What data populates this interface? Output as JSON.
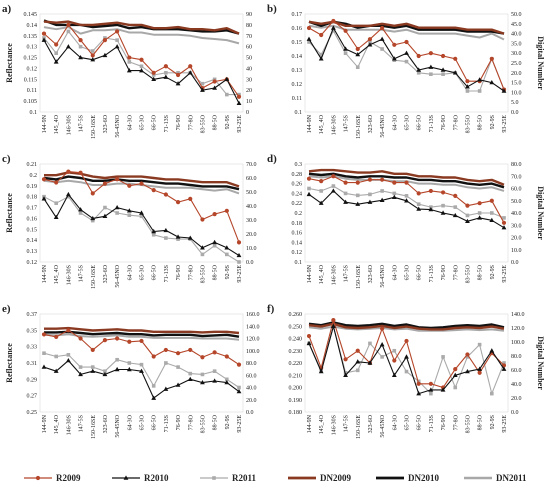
{
  "categories": [
    "144-9N",
    "145_4O",
    "146-30S",
    "147-5S",
    "150-16SE",
    "323-6O",
    "56-45NO",
    "64-3O",
    "65-3O",
    "66-5O",
    "71-13S",
    "76-9O",
    "77-8O",
    "83-55O",
    "88-5O",
    "92-9S",
    "93-25E"
  ],
  "series_styles": [
    {
      "name": "R2009",
      "color": "#b5462a",
      "marker": "circle",
      "width": 1.1,
      "axis": "left"
    },
    {
      "name": "R2010",
      "color": "#111111",
      "marker": "triangle",
      "width": 1.1,
      "axis": "left"
    },
    {
      "name": "R2011",
      "color": "#aaaaaa",
      "marker": "square",
      "width": 1.1,
      "axis": "left"
    },
    {
      "name": "DN2009",
      "color": "#8b3a22",
      "marker": "none",
      "width": 2.4,
      "axis": "right"
    },
    {
      "name": "DN2010",
      "color": "#111111",
      "marker": "none",
      "width": 2.4,
      "axis": "right"
    },
    {
      "name": "DN2011",
      "color": "#a8a8a8",
      "marker": "none",
      "width": 2.0,
      "axis": "right"
    }
  ],
  "legend": {
    "placement": "bottom",
    "entries": [
      "R2009",
      "R2010",
      "R2011",
      "DN2009",
      "DN2010",
      "DN2011"
    ]
  },
  "chart_data": [
    {
      "type": "line",
      "label": "a)",
      "ylabel": "Reflectance",
      "y2label": "",
      "ylim": [
        0.1,
        0.145
      ],
      "yticks": [
        "0.1",
        "0.105",
        "0.11",
        "0.115",
        "0.12",
        "0.125",
        "0.13",
        "0.135",
        "0.14",
        "0.145"
      ],
      "y2lim": [
        0,
        90
      ],
      "y2ticks": [
        "0",
        "10",
        "20",
        "30",
        "40",
        "50",
        "60",
        "70",
        "80",
        "90"
      ],
      "series": [
        {
          "name": "R2009",
          "values": [
            0.136,
            0.131,
            0.14,
            0.133,
            0.126,
            0.133,
            0.137,
            0.125,
            0.124,
            0.118,
            0.121,
            0.117,
            0.121,
            0.111,
            0.114,
            0.115,
            0.107
          ]
        },
        {
          "name": "R2010",
          "values": [
            0.133,
            0.123,
            0.13,
            0.125,
            0.124,
            0.126,
            0.13,
            0.119,
            0.119,
            0.115,
            0.116,
            0.113,
            0.118,
            0.11,
            0.111,
            0.115,
            0.104
          ]
        },
        {
          "name": "R2011",
          "values": [
            0.134,
            0.127,
            0.137,
            0.13,
            0.128,
            0.134,
            0.133,
            0.123,
            0.121,
            0.117,
            0.118,
            0.118,
            0.118,
            0.113,
            0.115,
            0.108,
            0.108
          ]
        },
        {
          "name": "DN2009",
          "values": [
            83,
            82,
            83,
            80,
            80,
            81,
            82,
            80,
            80,
            77,
            77,
            78,
            76,
            76,
            75,
            77,
            72
          ]
        },
        {
          "name": "DN2010",
          "values": [
            84,
            80,
            80,
            80,
            78,
            79,
            80,
            77,
            78,
            76,
            76,
            76,
            75,
            74,
            74,
            75,
            72
          ]
        },
        {
          "name": "DN2011",
          "values": [
            78,
            76,
            78,
            72,
            75,
            75,
            76,
            73,
            73,
            71,
            71,
            71,
            70,
            68,
            67,
            66,
            63
          ]
        }
      ]
    },
    {
      "type": "line",
      "label": "b)",
      "ylabel": "",
      "y2label": "Digital Number",
      "ylim": [
        0.1,
        0.17
      ],
      "yticks": [
        "0.1",
        "0.11",
        "0.12",
        "0.13",
        "0.14",
        "0.15",
        "0.16",
        "0.17"
      ],
      "y2lim": [
        0,
        50
      ],
      "y2ticks": [
        "0.0",
        "5.0",
        "10.0",
        "15.0",
        "20.0",
        "25.0",
        "30.0",
        "35.0",
        "40.0",
        "45.0",
        "50.0"
      ],
      "series": [
        {
          "name": "R2009",
          "values": [
            0.16,
            0.155,
            0.165,
            0.158,
            0.145,
            0.152,
            0.16,
            0.148,
            0.15,
            0.14,
            0.142,
            0.14,
            0.138,
            0.122,
            0.122,
            0.138,
            0.116
          ]
        },
        {
          "name": "R2010",
          "values": [
            0.152,
            0.138,
            0.16,
            0.145,
            0.141,
            0.148,
            0.152,
            0.138,
            0.142,
            0.13,
            0.132,
            0.13,
            0.128,
            0.118,
            0.123,
            0.121,
            0.115
          ]
        },
        {
          "name": "R2011",
          "values": [
            0.15,
            0.141,
            0.158,
            0.142,
            0.132,
            0.15,
            0.145,
            0.137,
            0.136,
            0.128,
            0.127,
            0.127,
            0.128,
            0.115,
            0.115,
            0.138,
            0.116
          ]
        },
        {
          "name": "DN2009",
          "values": [
            46,
            45,
            46,
            44,
            44,
            44,
            45,
            44,
            45,
            43,
            43,
            43,
            43,
            42,
            42,
            42,
            40
          ]
        },
        {
          "name": "DN2010",
          "values": [
            46,
            44,
            46,
            45,
            43,
            44,
            44,
            43,
            44,
            42,
            42,
            42,
            42,
            41,
            41,
            41,
            40
          ]
        },
        {
          "name": "DN2011",
          "values": [
            44,
            43,
            44,
            42,
            42,
            42,
            42,
            41,
            42,
            40,
            40,
            40,
            40,
            39,
            38,
            40,
            37
          ]
        }
      ]
    },
    {
      "type": "line",
      "label": "c)",
      "ylabel": "Reflectance",
      "y2label": "",
      "ylim": [
        0.12,
        0.21
      ],
      "yticks": [
        "0.12",
        "0.13",
        "0.14",
        "0.15",
        "0.16",
        "0.17",
        "0.18",
        "0.19",
        "0.2",
        "0.21"
      ],
      "y2lim": [
        0,
        70
      ],
      "y2ticks": [
        "0.0",
        "10.0",
        "20.0",
        "30.0",
        "40.0",
        "50.0",
        "60.0",
        "70.0"
      ],
      "series": [
        {
          "name": "R2009",
          "values": [
            0.196,
            0.193,
            0.203,
            0.202,
            0.183,
            0.192,
            0.196,
            0.19,
            0.192,
            0.186,
            0.182,
            0.175,
            0.178,
            0.159,
            0.164,
            0.167,
            0.138
          ]
        },
        {
          "name": "R2010",
          "values": [
            0.178,
            0.161,
            0.182,
            0.168,
            0.16,
            0.162,
            0.17,
            0.167,
            0.165,
            0.148,
            0.149,
            0.143,
            0.142,
            0.133,
            0.138,
            0.133,
            0.126
          ]
        },
        {
          "name": "R2011",
          "values": [
            0.18,
            0.174,
            0.18,
            0.165,
            0.158,
            0.17,
            0.165,
            0.163,
            0.162,
            0.145,
            0.142,
            0.141,
            0.141,
            0.127,
            0.135,
            0.127,
            0.12
          ]
        },
        {
          "name": "DN2009",
          "values": [
            62,
            62,
            64,
            63,
            61,
            60,
            61,
            61,
            61,
            60,
            59,
            59,
            58,
            57,
            57,
            57,
            54
          ]
        },
        {
          "name": "DN2010",
          "values": [
            60,
            59,
            61,
            60,
            58,
            58,
            59,
            58,
            58,
            57,
            56,
            56,
            55,
            54,
            54,
            54,
            52
          ]
        },
        {
          "name": "DN2011",
          "values": [
            58,
            57,
            58,
            57,
            55,
            55,
            56,
            56,
            55,
            54,
            53,
            53,
            53,
            52,
            51,
            52,
            49
          ]
        }
      ]
    },
    {
      "type": "line",
      "label": "d)",
      "ylabel": "",
      "y2label": "Digital Number",
      "ylim": [
        0.1,
        0.3
      ],
      "yticks": [
        "0.1",
        "0.12",
        "0.14",
        "0.16",
        "0.18",
        "0.2",
        "0.22",
        "0.24",
        "0.26",
        "0.28",
        "0.3"
      ],
      "y2lim": [
        0,
        80
      ],
      "y2ticks": [
        "0.0",
        "10.0",
        "20.0",
        "30.0",
        "40.0",
        "50.0",
        "60.0",
        "70.0",
        "80.0"
      ],
      "series": [
        {
          "name": "R2009",
          "values": [
            0.27,
            0.265,
            0.275,
            0.262,
            0.262,
            0.268,
            0.268,
            0.262,
            0.262,
            0.24,
            0.245,
            0.242,
            0.235,
            0.215,
            0.22,
            0.225,
            0.18
          ]
        },
        {
          "name": "R2010",
          "values": [
            0.238,
            0.22,
            0.245,
            0.222,
            0.218,
            0.222,
            0.226,
            0.232,
            0.225,
            0.208,
            0.207,
            0.2,
            0.195,
            0.183,
            0.19,
            0.185,
            0.17
          ]
        },
        {
          "name": "R2011",
          "values": [
            0.25,
            0.245,
            0.255,
            0.24,
            0.236,
            0.238,
            0.245,
            0.24,
            0.235,
            0.218,
            0.212,
            0.215,
            0.212,
            0.195,
            0.2,
            0.2,
            0.19
          ]
        },
        {
          "name": "DN2009",
          "values": [
            74,
            75,
            75,
            74,
            73,
            73,
            74,
            72,
            72,
            70,
            70,
            69,
            69,
            67,
            66,
            67,
            63
          ]
        },
        {
          "name": "DN2010",
          "values": [
            72,
            71,
            72,
            70,
            69,
            70,
            70,
            69,
            69,
            67,
            67,
            66,
            66,
            64,
            63,
            64,
            61
          ]
        },
        {
          "name": "DN2011",
          "values": [
            70,
            69,
            70,
            68,
            67,
            67,
            67,
            66,
            66,
            64,
            64,
            63,
            63,
            61,
            60,
            61,
            58
          ]
        }
      ]
    },
    {
      "type": "line",
      "label": "e)",
      "ylabel": "Reflectance",
      "y2label": "",
      "ylim": [
        0.25,
        0.37
      ],
      "yticks": [
        "0.25",
        "0.27",
        "0.29",
        "0.31",
        "0.33",
        "0.35",
        "0.37"
      ],
      "y2lim": [
        0,
        160
      ],
      "y2ticks": [
        "0.0",
        "20.0",
        "40.0",
        "60.0",
        "80.0",
        "100.0",
        "120.0",
        "140.0",
        "160.0"
      ],
      "series": [
        {
          "name": "R2009",
          "values": [
            0.345,
            0.342,
            0.35,
            0.34,
            0.326,
            0.338,
            0.34,
            0.336,
            0.337,
            0.318,
            0.326,
            0.322,
            0.326,
            0.317,
            0.323,
            0.318,
            0.308
          ]
        },
        {
          "name": "R2010",
          "values": [
            0.305,
            0.3,
            0.313,
            0.296,
            0.3,
            0.296,
            0.302,
            0.302,
            0.3,
            0.267,
            0.278,
            0.283,
            0.29,
            0.286,
            0.288,
            0.286,
            0.275
          ]
        },
        {
          "name": "R2011",
          "values": [
            0.322,
            0.318,
            0.32,
            0.305,
            0.305,
            0.3,
            0.314,
            0.31,
            0.308,
            0.282,
            0.31,
            0.305,
            0.297,
            0.296,
            0.3,
            0.29,
            0.28
          ]
        },
        {
          "name": "DN2009",
          "values": [
            136,
            136,
            137,
            135,
            133,
            134,
            135,
            133,
            133,
            131,
            131,
            131,
            131,
            130,
            131,
            131,
            129
          ]
        },
        {
          "name": "DN2010",
          "values": [
            130,
            130,
            131,
            129,
            127,
            128,
            129,
            127,
            127,
            125,
            126,
            126,
            126,
            124,
            125,
            126,
            123
          ]
        },
        {
          "name": "DN2011",
          "values": [
            126,
            125,
            127,
            124,
            123,
            124,
            125,
            123,
            123,
            121,
            121,
            121,
            121,
            120,
            120,
            120,
            118
          ]
        }
      ]
    },
    {
      "type": "line",
      "label": "f)",
      "ylabel": "",
      "y2label": "Digital Number",
      "ylim": [
        0.18,
        0.26
      ],
      "yticks": [
        "0.180",
        "0.190",
        "0.200",
        "0.210",
        "0.220",
        "0.230",
        "0.240",
        "0.250",
        "0.260"
      ],
      "y2lim": [
        0,
        140
      ],
      "y2ticks": [
        "0.0",
        "20.0",
        "40.0",
        "60.0",
        "80.0",
        "100.0",
        "120.0",
        "140.0"
      ],
      "series": [
        {
          "name": "R2009",
          "values": [
            0.242,
            0.216,
            0.255,
            0.223,
            0.23,
            0.22,
            0.248,
            0.222,
            0.238,
            0.203,
            0.203,
            0.2,
            0.215,
            0.227,
            0.212,
            0.228,
            0.218
          ]
        },
        {
          "name": "R2010",
          "values": [
            0.236,
            0.213,
            0.25,
            0.21,
            0.221,
            0.22,
            0.235,
            0.21,
            0.225,
            0.195,
            0.198,
            0.198,
            0.21,
            0.213,
            0.215,
            0.23,
            0.215
          ]
        },
        {
          "name": "R2011",
          "values": [
            0.236,
            0.214,
            0.25,
            0.212,
            0.214,
            0.236,
            0.225,
            0.23,
            0.213,
            0.205,
            0.195,
            0.225,
            0.2,
            0.225,
            0.235,
            0.195,
            0.22
          ]
        },
        {
          "name": "DN2009",
          "values": [
            124,
            122,
            126,
            121,
            120,
            121,
            123,
            120,
            122,
            119,
            118,
            118,
            120,
            121,
            120,
            122,
            119
          ]
        },
        {
          "name": "DN2010",
          "values": [
            126,
            124,
            128,
            124,
            123,
            124,
            126,
            123,
            125,
            121,
            120,
            121,
            123,
            124,
            123,
            125,
            121
          ]
        },
        {
          "name": "DN2011",
          "values": [
            121,
            119,
            122,
            119,
            118,
            119,
            120,
            118,
            119,
            116,
            116,
            116,
            117,
            118,
            117,
            118,
            116
          ]
        }
      ]
    }
  ]
}
